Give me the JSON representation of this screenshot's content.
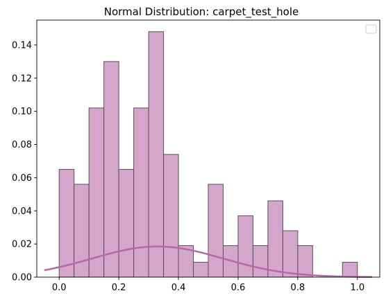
{
  "chart_data": {
    "type": "histogram",
    "title": "Normal Distribution: carpet_test_hole",
    "xlabel": "",
    "ylabel": "",
    "xlim": [
      -0.075,
      1.075
    ],
    "ylim": [
      0.0,
      0.155
    ],
    "grid": false,
    "legend": {
      "placement": "top-right",
      "entries": []
    },
    "x_ticks": [
      "0.0",
      "0.2",
      "0.4",
      "0.6",
      "0.8",
      "1.0"
    ],
    "x_tick_values": [
      0.0,
      0.2,
      0.4,
      0.6,
      0.8,
      1.0
    ],
    "y_ticks": [
      "0.00",
      "0.02",
      "0.04",
      "0.06",
      "0.08",
      "0.10",
      "0.12",
      "0.14"
    ],
    "y_tick_values": [
      0.0,
      0.02,
      0.04,
      0.06,
      0.08,
      0.1,
      0.12,
      0.14
    ],
    "histogram": {
      "bin_width": 0.05,
      "bin_edges": [
        0.0,
        0.05,
        0.1,
        0.15,
        0.2,
        0.25,
        0.3,
        0.35,
        0.4,
        0.45,
        0.5,
        0.55,
        0.6,
        0.65,
        0.7,
        0.75,
        0.8,
        0.85,
        0.9,
        0.95,
        1.0
      ],
      "values": [
        0.065,
        0.056,
        0.102,
        0.13,
        0.065,
        0.102,
        0.148,
        0.074,
        0.019,
        0.009,
        0.056,
        0.019,
        0.037,
        0.019,
        0.046,
        0.028,
        0.019,
        0.0,
        0.0,
        0.009
      ],
      "fill_color": "#d5a6cb",
      "edge_color": "#5a4c58"
    },
    "fitted_curve": {
      "type": "normal_pdf_scaled",
      "mean": 0.33,
      "std": 0.22,
      "peak": 0.0185,
      "x_range": [
        -0.05,
        1.05
      ],
      "color": "#b866a8"
    }
  }
}
